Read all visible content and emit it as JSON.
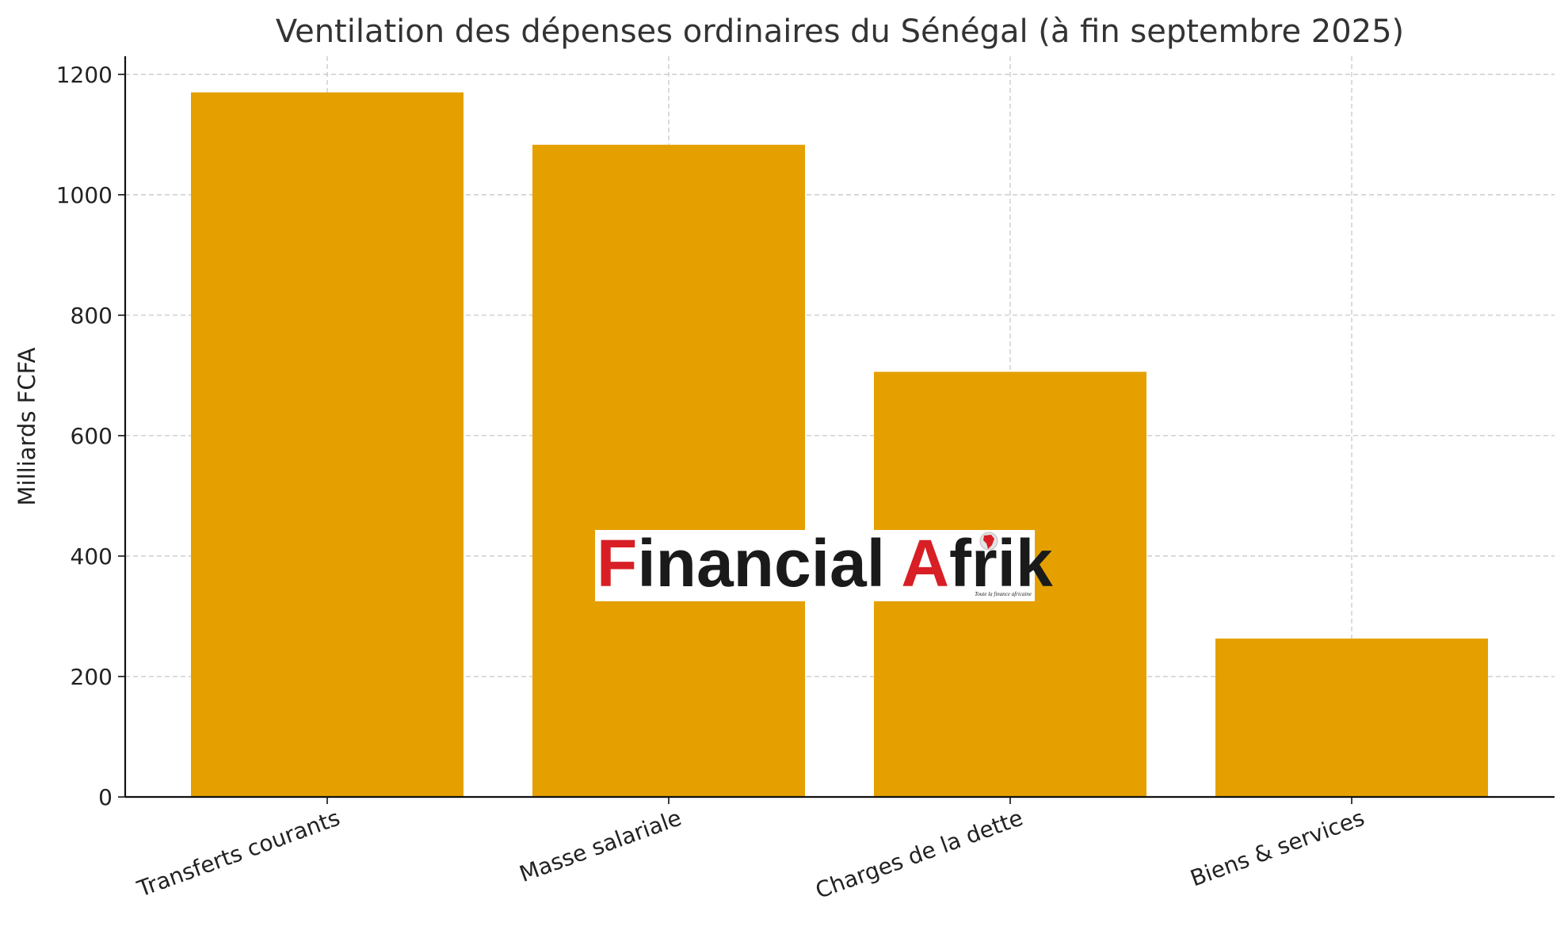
{
  "chart_data": {
    "type": "bar",
    "title": "Ventilation des dépenses ordinaires du Sénégal (à fin septembre 2025)",
    "xlabel": "",
    "ylabel": "Milliards FCFA",
    "categories": [
      "Transferts courants",
      "Masse salariale",
      "Charges de la dette",
      "Biens & services"
    ],
    "values": [
      1170,
      1083,
      706,
      263
    ],
    "ylim": [
      0,
      1230
    ],
    "yticks": [
      0,
      200,
      400,
      600,
      800,
      1000,
      1200
    ],
    "grid": true,
    "bar_color": "#e5a000"
  },
  "watermark": {
    "text_first_letter": "F",
    "text_rest": "inancial ",
    "text_second_first_letter": "A",
    "text_second_rest": "frik",
    "tagline": "Toute la finance africaine",
    "accent_color": "#d81f26",
    "dark_color": "#1a1a1a"
  }
}
